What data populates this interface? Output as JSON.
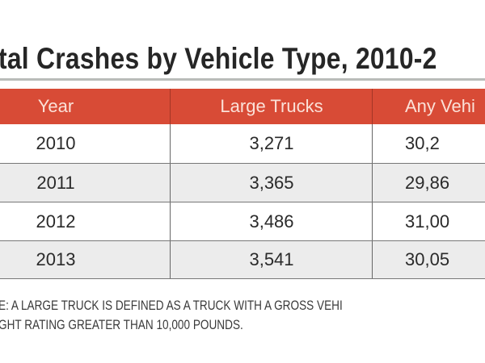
{
  "title": "tal Crashes by Vehicle Type, 2010-2",
  "table": {
    "headers": [
      "Year",
      "Large Trucks",
      "Any Vehi"
    ],
    "rows": [
      [
        "2010",
        "3,271",
        "30,2"
      ],
      [
        "2011",
        "3,365",
        "29,86"
      ],
      [
        "2012",
        "3,486",
        "31,00"
      ],
      [
        "2013",
        "3,541",
        "30,05"
      ]
    ]
  },
  "note": {
    "line1": "E: A LARGE TRUCK IS DEFINED AS A TRUCK WITH A GROSS VEHI",
    "line2": "GHT RATING GREATER THAN 10,000 POUNDS."
  },
  "colors": {
    "header": "#d84b36",
    "alt_row": "#ececec"
  }
}
